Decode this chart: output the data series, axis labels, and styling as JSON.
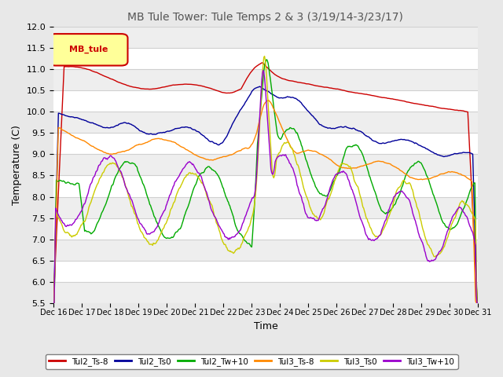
{
  "title": "MB Tule Tower: Tule Temps 2 & 3 (3/19/14-3/23/17)",
  "xlabel": "Time",
  "ylabel": "Temperature (C)",
  "ylim": [
    5.5,
    12.0
  ],
  "yticks": [
    5.5,
    6.0,
    6.5,
    7.0,
    7.5,
    8.0,
    8.5,
    9.0,
    9.5,
    10.0,
    10.5,
    11.0,
    11.5,
    12.0
  ],
  "legend_label": "MB_tule",
  "series_labels": [
    "Tul2_Ts-8",
    "Tul2_Ts0",
    "Tul2_Tw+10",
    "Tul3_Ts-8",
    "Tul3_Ts0",
    "Tul3_Tw+10"
  ],
  "series_colors": [
    "#cc0000",
    "#000099",
    "#00aa00",
    "#ff8800",
    "#cccc00",
    "#9900cc"
  ],
  "background_color": "#e8e8e8",
  "plot_bg_color": "#ffffff",
  "grid_color": "#d0d0d0",
  "title_fontsize": 10,
  "axis_fontsize": 9,
  "tick_fontsize": 8
}
